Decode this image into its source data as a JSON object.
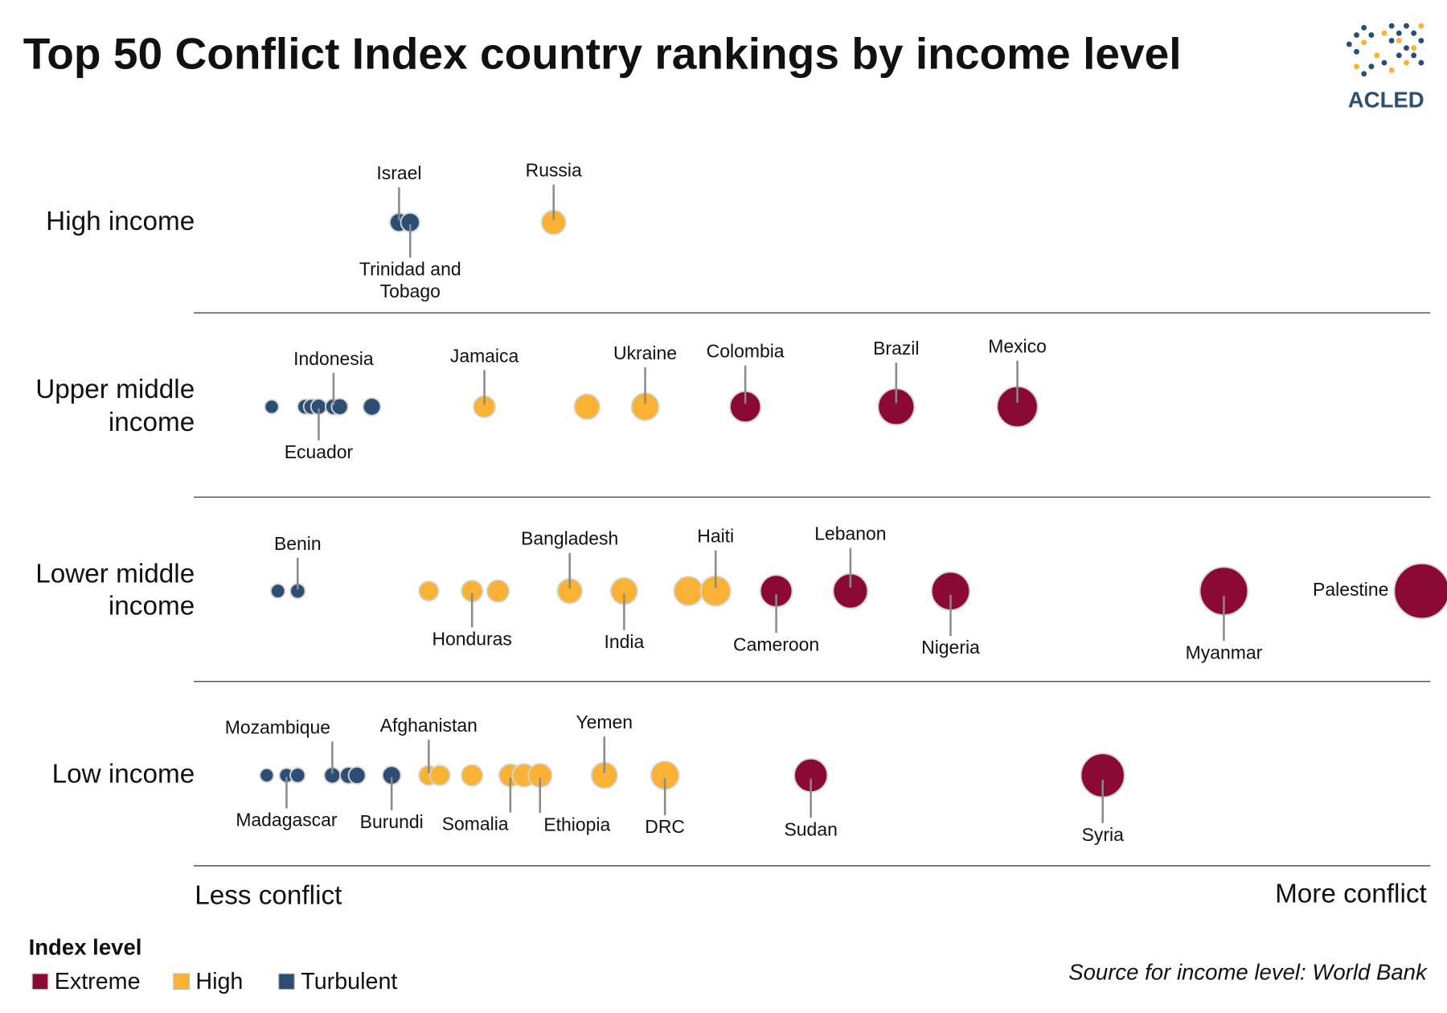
{
  "chart_data": {
    "type": "scatter",
    "title": "Top 50 Conflict Index country rankings by income level",
    "logo": "ACLED",
    "categories": [
      "High income",
      "Upper middle income",
      "Lower middle income",
      "Low income"
    ],
    "xlim": [
      0,
      100
    ],
    "x_label_left": "Less conflict",
    "x_label_right": "More conflict",
    "legend_title": "Index level",
    "source": "Source for income level: World Bank",
    "series": [
      {
        "name": "Extreme",
        "color": "#8b0a35",
        "x": [
          44.6,
          56.8,
          66.6,
          47.1,
          53.1,
          61.2,
          83.3,
          99.3,
          49.9,
          73.5
        ],
        "category": [
          "Upper middle income",
          "Upper middle income",
          "Upper middle income",
          "Lower middle income",
          "Lower middle income",
          "Lower middle income",
          "Lower middle income",
          "Lower middle income",
          "Low income",
          "Low income"
        ],
        "labels": [
          "Colombia",
          "Brazil",
          "Mexico",
          "Cameroon",
          "Lebanon",
          "Nigeria",
          "Myanmar",
          "Palestine",
          "Sudan",
          "Syria"
        ],
        "label_side": [
          "above",
          "above",
          "above",
          "below",
          "above",
          "below",
          "below",
          "left",
          "below",
          "below"
        ]
      },
      {
        "name": "High",
        "color": "#f9b233",
        "x": [
          29.1,
          23.5,
          31.8,
          36.5,
          19.0,
          22.5,
          24.6,
          30.4,
          34.8,
          40.0,
          42.2,
          19.0,
          19.9,
          22.5,
          25.6,
          26.7,
          28.0,
          33.2,
          38.1
        ],
        "category": [
          "High income",
          "Upper middle income",
          "Upper middle income",
          "Upper middle income",
          "Lower middle income",
          "Lower middle income",
          "Lower middle income",
          "Lower middle income",
          "Lower middle income",
          "Lower middle income",
          "Lower middle income",
          "Low income",
          "Low income",
          "Low income",
          "Low income",
          "Low income",
          "Low income",
          "Low income",
          "Low income"
        ],
        "labels": [
          "Russia",
          "Jamaica",
          null,
          "Ukraine",
          null,
          "Honduras",
          null,
          "Bangladesh",
          "India",
          null,
          "Haiti",
          "Afghanistan",
          null,
          null,
          "Somalia",
          null,
          "Ethiopia",
          "Yemen",
          "DRC"
        ],
        "label_side": [
          "above",
          "above",
          null,
          "above",
          null,
          "below",
          null,
          "above",
          "below",
          null,
          "above",
          "above",
          null,
          null,
          "below-left",
          null,
          "below-right",
          "above",
          "below"
        ]
      },
      {
        "name": "Turbulent",
        "color": "#2c4e73",
        "x": [
          16.6,
          17.5,
          6.3,
          9.0,
          9.5,
          10.1,
          11.3,
          11.8,
          14.4,
          6.8,
          8.4,
          5.9,
          7.5,
          8.4,
          11.2,
          12.5,
          13.2,
          16.0
        ],
        "category": [
          "High income",
          "High income",
          "Upper middle income",
          "Upper middle income",
          "Upper middle income",
          "Upper middle income",
          "Upper middle income",
          "Upper middle income",
          "Upper middle income",
          "Lower middle income",
          "Lower middle income",
          "Low income",
          "Low income",
          "Low income",
          "Low income",
          "Low income",
          "Low income",
          "Low income"
        ],
        "labels": [
          "Israel",
          "Trinidad and Tobago",
          null,
          null,
          null,
          "Ecuador",
          "Indonesia",
          null,
          null,
          null,
          "Benin",
          null,
          "Madagascar",
          null,
          "Mozambique",
          null,
          null,
          "Burundi"
        ],
        "label_side": [
          "above",
          "below",
          null,
          null,
          null,
          "below",
          "above",
          null,
          null,
          null,
          "above",
          null,
          "below",
          null,
          "above-left",
          null,
          null,
          "below"
        ]
      }
    ]
  }
}
